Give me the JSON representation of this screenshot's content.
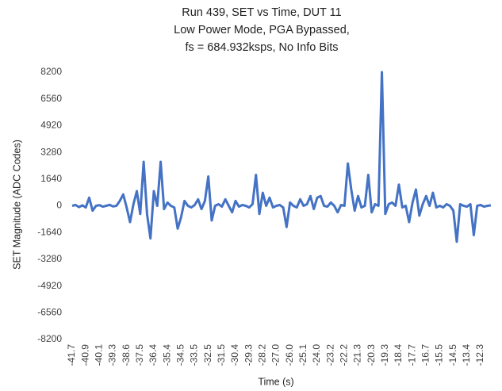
{
  "chart_data": {
    "type": "line",
    "title": [
      "Run 439, SET vs Time, DUT 11",
      "Low Power Mode, PGA Bypassed,",
      "fs = 684.932ksps, No Info Bits"
    ],
    "x_label": "Time (s)",
    "y_label": "SET Magnitude (ADC Codes)",
    "categories": [
      "-41.7",
      null,
      null,
      null,
      "-40.9",
      null,
      null,
      null,
      "-40.1",
      null,
      null,
      null,
      "-39.3",
      null,
      null,
      null,
      "-38.6",
      null,
      null,
      null,
      "-37.5",
      null,
      null,
      null,
      "-36.4",
      null,
      null,
      null,
      "-35.4",
      null,
      null,
      null,
      "-34.5",
      null,
      null,
      null,
      "-33.5",
      null,
      null,
      null,
      "-32.5",
      null,
      null,
      null,
      "-31.5",
      null,
      null,
      null,
      "-30.4",
      null,
      null,
      null,
      "-29.3",
      null,
      null,
      null,
      "-28.2",
      null,
      null,
      null,
      "-27.0",
      null,
      null,
      null,
      "-26.0",
      null,
      null,
      null,
      "-25.1",
      null,
      null,
      null,
      "-24.0",
      null,
      null,
      null,
      "-23.2",
      null,
      null,
      null,
      "-22.2",
      null,
      null,
      null,
      "-21.3",
      null,
      null,
      null,
      "-20.3",
      null,
      null,
      null,
      "-19.3",
      null,
      null,
      null,
      "-18.4",
      null,
      null,
      null,
      "-17.7",
      null,
      null,
      null,
      "-16.7",
      null,
      null,
      null,
      "-15.5",
      null,
      null,
      null,
      "-14.5",
      null,
      null,
      null,
      "-13.4",
      null,
      null,
      null,
      "-12.3",
      null,
      null,
      null
    ],
    "series": [
      {
        "name": "SET",
        "color": "#4472c4",
        "values": [
          0,
          50,
          -80,
          30,
          -100,
          500,
          -300,
          0,
          40,
          -50,
          0,
          60,
          -40,
          0,
          300,
          700,
          -100,
          -1000,
          100,
          900,
          -500,
          2700,
          -500,
          -2000,
          900,
          0,
          2700,
          -200,
          200,
          0,
          -100,
          -1400,
          -700,
          300,
          0,
          -100,
          50,
          400,
          -200,
          300,
          1800,
          -900,
          0,
          100,
          -50,
          400,
          0,
          -400,
          300,
          -50,
          50,
          0,
          -100,
          100,
          1900,
          -500,
          800,
          0,
          500,
          -100,
          0,
          50,
          -100,
          -1300,
          200,
          0,
          -100,
          400,
          0,
          100,
          600,
          -200,
          500,
          600,
          0,
          -50,
          200,
          0,
          -400,
          50,
          0,
          2600,
          1000,
          -300,
          600,
          -100,
          0,
          1900,
          -400,
          100,
          0,
          8200,
          -500,
          100,
          200,
          0,
          1300,
          -100,
          0,
          -1000,
          200,
          1000,
          -600,
          100,
          600,
          0,
          800,
          -100,
          0,
          -100,
          100,
          0,
          -300,
          -2200,
          100,
          0,
          -50,
          100,
          -1800,
          0,
          50,
          -50,
          0,
          30
        ]
      }
    ],
    "ylim": [
      -8200,
      8200
    ],
    "yticks": [
      8200,
      6560,
      4920,
      3280,
      1640,
      0,
      -1640,
      -3280,
      -4920,
      -6560,
      -8200
    ],
    "grid": false
  }
}
